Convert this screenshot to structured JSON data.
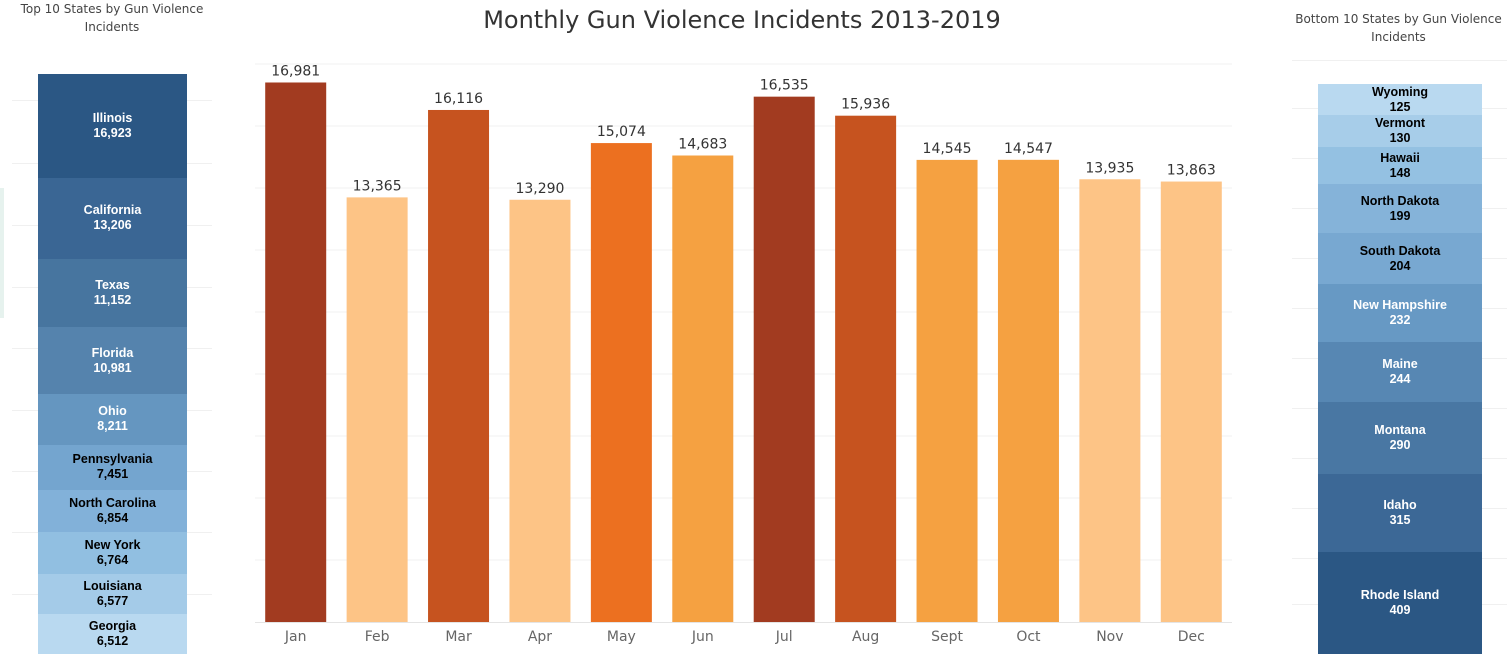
{
  "left_panel": {
    "title": "Top 10 States by Gun Violence Incidents",
    "items": [
      {
        "state": "Illinois",
        "value": 16923,
        "label": "16,923",
        "color": "#2b5784",
        "text_color": "#ffffff"
      },
      {
        "state": "California",
        "value": 13206,
        "label": "13,206",
        "color": "#3a6694",
        "text_color": "#ffffff"
      },
      {
        "state": "Texas",
        "value": 11152,
        "label": "11,152",
        "color": "#47759f",
        "text_color": "#ffffff"
      },
      {
        "state": "Florida",
        "value": 10981,
        "label": "10,981",
        "color": "#5583ad",
        "text_color": "#ffffff"
      },
      {
        "state": "Ohio",
        "value": 8211,
        "label": "8,211",
        "color": "#6596c0",
        "text_color": "#ffffff"
      },
      {
        "state": "Pennsylvania",
        "value": 7451,
        "label": "7,451",
        "color": "#74a5cf",
        "text_color": "#000000"
      },
      {
        "state": "North Carolina",
        "value": 6854,
        "label": "6,854",
        "color": "#82b1d9",
        "text_color": "#000000"
      },
      {
        "state": "New York",
        "value": 6764,
        "label": "6,764",
        "color": "#91bfe1",
        "text_color": "#000000"
      },
      {
        "state": "Louisiana",
        "value": 6577,
        "label": "6,577",
        "color": "#a4cbe8",
        "text_color": "#000000"
      },
      {
        "state": "Georgia",
        "value": 6512,
        "label": "6,512",
        "color": "#b9d9f0",
        "text_color": "#000000"
      }
    ]
  },
  "right_panel": {
    "title": "Bottom 10 States by Gun Violence Incidents",
    "items": [
      {
        "state": "Wyoming",
        "value": 125,
        "label": "125",
        "color": "#b9d9f0",
        "text_color": "#000000"
      },
      {
        "state": "Vermont",
        "value": 130,
        "label": "130",
        "color": "#a7cde9",
        "text_color": "#000000"
      },
      {
        "state": "Hawaii",
        "value": 148,
        "label": "148",
        "color": "#94c1e2",
        "text_color": "#000000"
      },
      {
        "state": "North Dakota",
        "value": 199,
        "label": "199",
        "color": "#85b3d9",
        "text_color": "#000000"
      },
      {
        "state": "South Dakota",
        "value": 204,
        "label": "204",
        "color": "#78a8d1",
        "text_color": "#000000"
      },
      {
        "state": "New Hampshire",
        "value": 232,
        "label": "232",
        "color": "#6799c4",
        "text_color": "#ffffff"
      },
      {
        "state": "Maine",
        "value": 244,
        "label": "244",
        "color": "#5787b3",
        "text_color": "#ffffff"
      },
      {
        "state": "Montana",
        "value": 290,
        "label": "290",
        "color": "#4977a3",
        "text_color": "#ffffff"
      },
      {
        "state": "Idaho",
        "value": 315,
        "label": "315",
        "color": "#3c6896",
        "text_color": "#ffffff"
      },
      {
        "state": "Rhode Island",
        "value": 409,
        "label": "409",
        "color": "#2b5784",
        "text_color": "#ffffff"
      }
    ]
  },
  "chart_data": {
    "type": "bar",
    "title": "Monthly Gun Violence Incidents 2013-2019",
    "xlabel": "",
    "ylabel": "",
    "categories": [
      "Jan",
      "Feb",
      "Mar",
      "Apr",
      "May",
      "Jun",
      "Jul",
      "Aug",
      "Sept",
      "Oct",
      "Nov",
      "Dec"
    ],
    "values": [
      16981,
      13365,
      16116,
      13290,
      15074,
      14683,
      16535,
      15936,
      14545,
      14547,
      13935,
      13863
    ],
    "value_labels": [
      "16,981",
      "13,365",
      "16,116",
      "13,290",
      "15,074",
      "14,683",
      "16,535",
      "15,936",
      "14,545",
      "14,547",
      "13,935",
      "13,863"
    ],
    "colors": [
      "#a23b20",
      "#fdc486",
      "#c6531f",
      "#fdc486",
      "#ec7020",
      "#f5a141",
      "#a23b20",
      "#c6531f",
      "#f5a141",
      "#f5a141",
      "#fdc486",
      "#fdc486"
    ],
    "ylim": [
      0,
      17500
    ],
    "grid": true,
    "legend": "none"
  }
}
